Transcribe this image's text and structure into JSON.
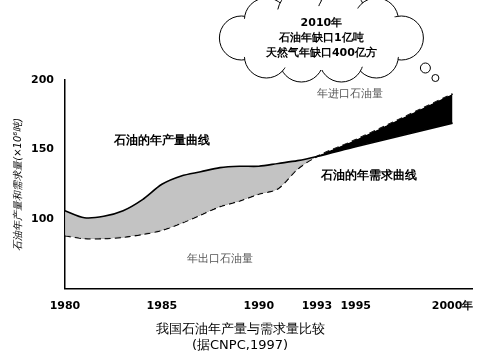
{
  "chart_data": {
    "type": "line",
    "title": "我国石油年产量与需求量比较",
    "subtitle": "(据CNPC,1997)",
    "y_label": "石油年产量和需求量(×10⁶吨)",
    "x": [
      1980,
      1981,
      1982,
      1983,
      1984,
      1985,
      1986,
      1987,
      1988,
      1989,
      1990,
      1991,
      1992,
      1993,
      1995,
      2000
    ],
    "series": [
      {
        "name": "石油的年产量曲线",
        "color": "#000000",
        "line_style": "solid",
        "values": [
          106,
          101,
          102,
          106,
          114,
          125,
          131,
          134,
          137,
          138,
          138,
          140,
          142,
          145,
          152,
          169
        ]
      },
      {
        "name": "石油的年需求曲线",
        "color": "#000000",
        "line_style": "dashed",
        "values": [
          88,
          86,
          86,
          87,
          89,
          92,
          97,
          103,
          109,
          113,
          118,
          122,
          136,
          145,
          157,
          190
        ]
      }
    ],
    "xlim": [
      1980,
      2001
    ],
    "xticks": [
      1980,
      1985,
      1990,
      1993,
      1995,
      {
        "value": 2000,
        "label": "2000年"
      }
    ],
    "ylim": [
      50,
      200
    ],
    "yticks": [
      100,
      150,
      200
    ],
    "grid": false,
    "annotations": [
      "年出口石油量",
      "年进口石油量"
    ],
    "callout": [
      "2010年",
      "石油年缺口1亿吨",
      "天然气年缺口400亿方"
    ]
  }
}
